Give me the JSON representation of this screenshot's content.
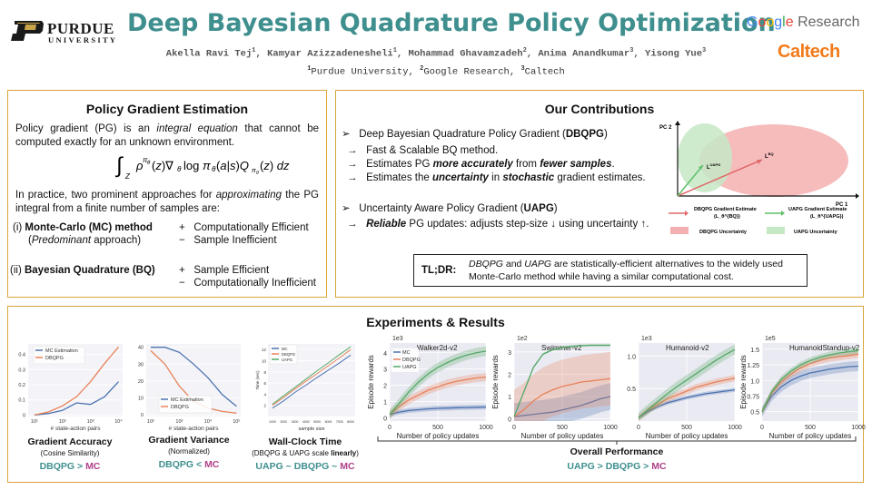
{
  "header": {
    "purdue_word1": "PURDUE",
    "purdue_word2": "UNIVERSITY",
    "title": "Deep Bayesian Quadrature Policy Optimization",
    "authors": [
      {
        "name": "Akella Ravi Tej",
        "sup": "1"
      },
      {
        "name": "Kamyar Azizzadenesheli",
        "sup": "1"
      },
      {
        "name": "Mohammad Ghavamzadeh",
        "sup": "2"
      },
      {
        "name": "Anima Anandkumar",
        "sup": "3"
      },
      {
        "name": "Yisong Yue",
        "sup": "3"
      }
    ],
    "affiliations": [
      {
        "sup": "1",
        "name": "Purdue University"
      },
      {
        "sup": "2",
        "name": "Google Research"
      },
      {
        "sup": "3",
        "name": "Caltech"
      }
    ],
    "google_word": "Google",
    "google_research": "Research",
    "caltech": "Caltech",
    "colors": {
      "title": "#3f8f8f",
      "caltech": "#f27c1c",
      "border": "#d9a53b"
    }
  },
  "pg_panel": {
    "title": "Policy Gradient Estimation",
    "intro_pre": "Policy gradient (PG) is an ",
    "intro_em": "integral equation",
    "intro_post": " that cannot be computed exactly for an unknown environment.",
    "equation": "∫_Z ρ^{π_θ}(z) ∇_θ log π_θ(a|s) Q_{π_θ}(z) dz",
    "practice_pre": "In practice, two prominent approaches for ",
    "practice_em": "approximating",
    "practice_post": " the PG integral from a finite number of samples are:",
    "mc_prefix": "(i) ",
    "mc_name": "Monte-Carlo (MC) method",
    "mc_note": "Predominant",
    "mc_note_post": " approach)",
    "mc_pro": "Computationally Efficient",
    "mc_con": "Sample Inefficient",
    "bq_prefix": "(ii) ",
    "bq_name": "Bayesian Quadrature (BQ)",
    "bq_pro": "Sample Efficient",
    "bq_con": "Computationally Inefficient",
    "plus": "+",
    "minus": "−"
  },
  "contrib_panel": {
    "title": "Our Contributions",
    "item1_pre": "Deep Bayesian Quadrature Policy Gradient (",
    "item1_bold": "DBQPG",
    "item1_post": ")",
    "sub1": "Fast & Scalable BQ method.",
    "sub2_pre": "Estimates PG ",
    "sub2_em1": "more accurately",
    "sub2_mid": " from ",
    "sub2_em2": "fewer samples",
    "sub2_post": ".",
    "sub3_pre": "Estimates the ",
    "sub3_em1": "uncertainty",
    "sub3_mid": " in ",
    "sub3_em2": "stochastic",
    "sub3_post": " gradient estimates.",
    "item2_pre": "Uncertainty Aware Policy Gradient (",
    "item2_bold": "UAPG",
    "item2_post": ")",
    "sub4_em": "Reliable",
    "sub4_post": " PG updates: adjusts step-size ↓ using uncertainty ↑.",
    "arrow": "→",
    "pointer": "➢",
    "tldr_label": "TL;DR:",
    "tldr_em1": "DBQPG",
    "tldr_and": " and ",
    "tldr_em2": "UAPG",
    "tldr_post": " are statistically-efficient alternatives to the widely used Monte-Carlo method while having a similar computational cost.",
    "diagram": {
      "pc1": "PC 1",
      "pc2": "PC 2",
      "ldbq": "L_θ^{BQ}",
      "luapg": "L_θ^{UAPG}",
      "leg1a": "DBQPG Gradient Estimate",
      "leg1b": "(L_θ^{BQ})",
      "leg2a": "UAPG Gradient Estimate",
      "leg2b": "(L_θ^{UAPG})",
      "leg3": "DBQPG Uncertainty",
      "leg4": "UAPG Uncertainty",
      "colors": {
        "dbqpg": "#e06a6a",
        "uapg": "#5fbf6a",
        "dbqpg_fill": "#f4b0b0",
        "uapg_fill": "#c5e8c5"
      }
    }
  },
  "experiments": {
    "title": "Experiments & Results",
    "series_colors": {
      "MC": "#4c72b0",
      "DBQPG": "#e8825a",
      "UAPG": "#55a868"
    },
    "small_charts": [
      {
        "caption": "Gradient Accuracy",
        "sub": "(Cosine Similarity)",
        "cmp": [
          {
            "t": "DBQPG",
            "c": "teal"
          },
          {
            "t": " > ",
            "c": "teal"
          },
          {
            "t": "MC",
            "c": "mag"
          }
        ]
      },
      {
        "caption": "Gradient Variance",
        "sub": "(Normalized)",
        "cmp": [
          {
            "t": "DBQPG",
            "c": "teal"
          },
          {
            "t": " < ",
            "c": "teal"
          },
          {
            "t": "MC",
            "c": "mag"
          }
        ]
      },
      {
        "caption": "Wall-Clock Time",
        "sub_pre": "(DBQPG & UAPG scale ",
        "sub_bold": "linearly",
        "sub_post": ")",
        "cmp": [
          {
            "t": "UAPG",
            "c": "teal"
          },
          {
            "t": " ~ ",
            "c": "teal"
          },
          {
            "t": "DBQPG",
            "c": "teal"
          },
          {
            "t": " ~ ",
            "c": "teal"
          },
          {
            "t": "MC",
            "c": "mag"
          }
        ]
      }
    ],
    "overall_caption": "Overall Performance",
    "overall_cmp": [
      {
        "t": "UAPG",
        "c": "teal"
      },
      {
        "t": " > ",
        "c": "teal"
      },
      {
        "t": "DBQPG",
        "c": "teal"
      },
      {
        "t": " > ",
        "c": "teal"
      },
      {
        "t": "MC",
        "c": "mag"
      }
    ]
  },
  "chart_data": [
    {
      "type": "line",
      "id": "grad-accuracy",
      "xlabel": "# state-action pairs",
      "ylabel": "",
      "x": [
        10,
        31.6,
        100,
        316,
        1000,
        3162,
        10000
      ],
      "x_scale": "log",
      "x_tick_labels": [
        "10¹",
        "10²",
        "10³",
        "10⁴"
      ],
      "x_ticks": [
        10,
        100,
        1000,
        10000
      ],
      "y_ticks": [
        0.0,
        0.1,
        0.2,
        0.3,
        0.4
      ],
      "ylim": [
        -0.01,
        0.47
      ],
      "legend": "top-left",
      "series": [
        {
          "name": "MC Estimation",
          "values": [
            0.0,
            0.01,
            0.03,
            0.08,
            0.07,
            0.12,
            0.22
          ]
        },
        {
          "name": "DBQPG",
          "values": [
            0.0,
            0.02,
            0.06,
            0.12,
            0.22,
            0.34,
            0.45
          ]
        }
      ]
    },
    {
      "type": "line",
      "id": "grad-variance",
      "xlabel": "# state-action pairs",
      "ylabel": "",
      "x": [
        100,
        177,
        316,
        562,
        1000,
        1778,
        3162,
        5623,
        10000
      ],
      "x_scale": "log",
      "x_tick_labels": [
        "10²",
        "10³",
        "10⁴",
        "10⁵"
      ],
      "x_ticks": [
        100,
        1000,
        10000,
        100000
      ],
      "xlim_log": [
        100,
        100000
      ],
      "y_ticks": [
        0,
        10,
        20,
        30,
        40
      ],
      "ylim": [
        -1,
        42
      ],
      "legend": "bottom-left",
      "series": [
        {
          "name": "MC Estimation",
          "x": [
            100,
            316,
            1000,
            3162,
            10000,
            31623,
            100000
          ],
          "values": [
            40,
            40,
            37,
            30,
            22,
            12,
            5
          ]
        },
        {
          "name": "DBQPG",
          "x": [
            100,
            316,
            1000,
            3162,
            10000,
            31623,
            100000
          ],
          "values": [
            38,
            30,
            17,
            8,
            4,
            2,
            1
          ]
        }
      ]
    },
    {
      "type": "line",
      "id": "wall-clock",
      "xlabel": "sample size",
      "ylabel": "Time (sec)",
      "x": [
        1000,
        2000,
        3000,
        4000,
        5000,
        6000,
        7000,
        8000
      ],
      "x_tick_labels": [
        "1000",
        "2000",
        "3000",
        "4000",
        "5000",
        "6000",
        "7000",
        "8000"
      ],
      "y_tick_labels": [
        "2",
        "4",
        "6",
        "8",
        "10",
        "12"
      ],
      "ylim": [
        0,
        13
      ],
      "legend": "top-left",
      "series": [
        {
          "name": "MC",
          "values": [
            1.5,
            2.8,
            4.3,
            5.6,
            7.0,
            8.3,
            9.6,
            11.0
          ]
        },
        {
          "name": "DBQPG",
          "values": [
            2.0,
            3.4,
            4.9,
            6.3,
            7.7,
            9.1,
            10.5,
            12.0
          ]
        },
        {
          "name": "UAPG",
          "values": [
            2.2,
            3.7,
            5.2,
            6.7,
            8.2,
            9.6,
            11.1,
            12.5
          ]
        }
      ]
    },
    {
      "type": "line",
      "id": "walker2d",
      "title": "Walker2d-v2",
      "multiplier": "1e3",
      "xlabel": "Number of policy updates",
      "ylabel": "Episode rewards",
      "x": [
        0,
        100,
        200,
        300,
        400,
        500,
        600,
        700,
        800,
        900,
        1000
      ],
      "x_tick_labels": [
        "0",
        "500",
        "1000"
      ],
      "y_tick_labels": [
        "0",
        "1",
        "2",
        "3",
        "4"
      ],
      "ylim": [
        -0.2,
        4.6
      ],
      "legend": "top-left",
      "series": [
        {
          "name": "MC",
          "values": [
            0.2,
            0.35,
            0.45,
            0.5,
            0.55,
            0.58,
            0.6,
            0.62,
            0.63,
            0.65,
            0.66
          ],
          "band": 0.15
        },
        {
          "name": "DBQPG",
          "values": [
            0.2,
            0.7,
            1.1,
            1.4,
            1.7,
            1.9,
            2.1,
            2.25,
            2.35,
            2.45,
            2.5
          ],
          "band": 0.25
        },
        {
          "name": "UAPG",
          "values": [
            0.2,
            0.9,
            1.6,
            2.2,
            2.7,
            3.1,
            3.4,
            3.65,
            3.85,
            4.0,
            4.1
          ],
          "band": 0.3
        }
      ]
    },
    {
      "type": "line",
      "id": "swimmer",
      "title": "Swimmer-v2",
      "multiplier": "1e2",
      "xlabel": "Number of policy updates",
      "ylabel": "Episode rewards",
      "x": [
        0,
        100,
        200,
        300,
        400,
        500,
        600,
        700,
        800,
        900,
        1000
      ],
      "x_tick_labels": [
        "0",
        "500",
        "1000"
      ],
      "y_tick_labels": [
        "0",
        "1",
        "2",
        "3"
      ],
      "ylim": [
        -0.1,
        3.4
      ],
      "legend": "none",
      "series": [
        {
          "name": "MC",
          "values": [
            0.1,
            0.15,
            0.2,
            0.25,
            0.3,
            0.4,
            0.5,
            0.6,
            0.75,
            0.9,
            1.0
          ],
          "band": 0.6
        },
        {
          "name": "DBQPG",
          "values": [
            0.1,
            0.4,
            0.8,
            1.1,
            1.3,
            1.45,
            1.55,
            1.65,
            1.7,
            1.75,
            1.8
          ],
          "band": 1.2
        },
        {
          "name": "UAPG",
          "values": [
            0.1,
            1.2,
            2.3,
            2.9,
            3.1,
            3.2,
            3.25,
            3.28,
            3.3,
            3.3,
            3.3
          ],
          "band": 0.05
        }
      ]
    },
    {
      "type": "line",
      "id": "humanoid",
      "title": "Humanoid-v2",
      "multiplier": "1e3",
      "xlabel": "Number of policy updates",
      "ylabel": "",
      "x": [
        0,
        100,
        200,
        300,
        400,
        500,
        600,
        700,
        800,
        900,
        1000
      ],
      "x_tick_labels": [
        "0",
        "500",
        "1000"
      ],
      "y_tick_labels": [
        "0.5",
        "1.0"
      ],
      "y_ticks": [
        0.5,
        1.0
      ],
      "ylim": [
        0.0,
        1.2
      ],
      "legend": "none",
      "series": [
        {
          "name": "MC",
          "values": [
            0.05,
            0.15,
            0.22,
            0.28,
            0.32,
            0.36,
            0.39,
            0.42,
            0.44,
            0.46,
            0.48
          ],
          "band": 0.03
        },
        {
          "name": "DBQPG",
          "values": [
            0.05,
            0.17,
            0.26,
            0.34,
            0.4,
            0.46,
            0.52,
            0.56,
            0.6,
            0.63,
            0.66
          ],
          "band": 0.05
        },
        {
          "name": "UAPG",
          "values": [
            0.05,
            0.18,
            0.3,
            0.42,
            0.53,
            0.63,
            0.73,
            0.83,
            0.93,
            1.02,
            1.1
          ],
          "band": 0.08
        }
      ]
    },
    {
      "type": "line",
      "id": "humanoidstandup",
      "title": "HumanoidStandup-v2",
      "multiplier": "1e5",
      "xlabel": "Number of policy updates",
      "ylabel": "Episode rewards",
      "x": [
        0,
        100,
        200,
        300,
        400,
        500,
        600,
        700,
        800,
        900,
        1000
      ],
      "x_tick_labels": [
        "0",
        "500",
        "1000"
      ],
      "y_tick_labels": [
        "0.5",
        "0.75",
        "1.0",
        "1.25",
        "1.5"
      ],
      "y_ticks": [
        0.5,
        0.75,
        1.0,
        1.25,
        1.5
      ],
      "ylim": [
        0.35,
        1.6
      ],
      "legend": "none",
      "series": [
        {
          "name": "MC",
          "values": [
            0.5,
            0.75,
            0.9,
            1.0,
            1.07,
            1.12,
            1.15,
            1.18,
            1.2,
            1.22,
            1.23
          ],
          "band": 0.08
        },
        {
          "name": "DBQPG",
          "values": [
            0.5,
            0.8,
            0.98,
            1.1,
            1.2,
            1.27,
            1.32,
            1.36,
            1.38,
            1.4,
            1.42
          ],
          "band": 0.06
        },
        {
          "name": "UAPG",
          "values": [
            0.5,
            0.82,
            1.02,
            1.15,
            1.25,
            1.32,
            1.37,
            1.41,
            1.44,
            1.46,
            1.48
          ],
          "band": 0.05
        }
      ]
    }
  ]
}
